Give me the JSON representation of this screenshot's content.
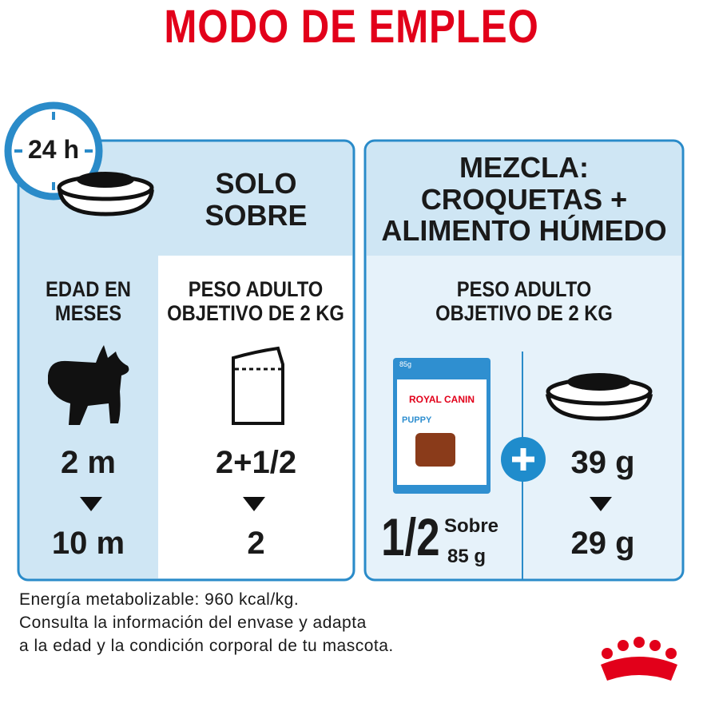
{
  "header": {
    "title": "MODO DE EMPLEO"
  },
  "clock": {
    "label": "24 h"
  },
  "left_panel": {
    "title_lines": [
      "SOLO",
      "SOBRE"
    ],
    "age_header_lines": [
      "EDAD EN",
      "MESES"
    ],
    "weight_header_lines": [
      "PESO ADULTO",
      "OBJETIVO DE 2 KG"
    ],
    "ages": [
      "2 m",
      "10 m"
    ],
    "pouches": [
      "2+1/2",
      "2"
    ]
  },
  "right_panel": {
    "title_lines": [
      "MEZCLA:",
      "CROQUETAS +",
      "ALIMENTO HÚMEDO"
    ],
    "weight_header_lines": [
      "PESO ADULTO",
      "OBJETIVO DE 2 KG"
    ],
    "package": {
      "weight": "85g",
      "brand": "ROYAL CANIN",
      "product": "PUPPY"
    },
    "pouch_amount": "1/2",
    "pouch_unit": "Sobre",
    "pouch_weight": "85 g",
    "kibble": [
      "39 g",
      "29 g"
    ]
  },
  "footer": {
    "lines": [
      "Energía metabolizable: 960 kcal/kg.",
      "Consulta la información del envase y adapta",
      "a la edad y la condición corporal de tu mascota."
    ]
  }
}
